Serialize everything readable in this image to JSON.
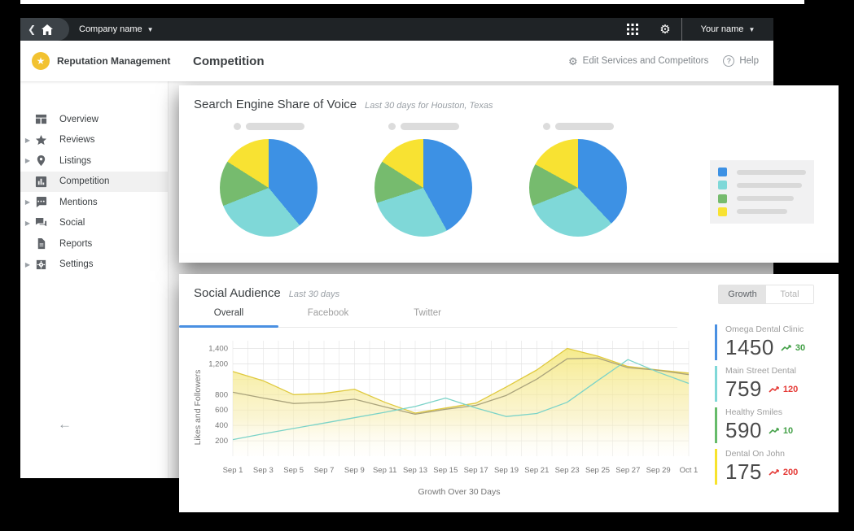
{
  "topbar": {
    "company_name": "Company name",
    "user_name": "Your name"
  },
  "brand": {
    "name": "Reputation Management"
  },
  "page": {
    "title": "Competition",
    "edit_link": "Edit Services and Competitors",
    "help_link": "Help",
    "help_glyph": "?"
  },
  "sidebar": {
    "items": [
      {
        "label": "Overview",
        "icon": "dashboard",
        "expandable": false,
        "active": false
      },
      {
        "label": "Reviews",
        "icon": "star",
        "expandable": true,
        "active": false
      },
      {
        "label": "Listings",
        "icon": "pin",
        "expandable": true,
        "active": false
      },
      {
        "label": "Competition",
        "icon": "chart",
        "expandable": false,
        "active": true
      },
      {
        "label": "Mentions",
        "icon": "comment",
        "expandable": true,
        "active": false
      },
      {
        "label": "Social",
        "icon": "chat",
        "expandable": true,
        "active": false
      },
      {
        "label": "Reports",
        "icon": "doc",
        "expandable": false,
        "active": false
      },
      {
        "label": "Settings",
        "icon": "gear",
        "expandable": true,
        "active": false
      }
    ]
  },
  "share_of_voice": {
    "title": "Search Engine Share of Voice",
    "subtitle": "Last 30 days for Houston, Texas",
    "colors": [
      "#3d91e4",
      "#7fd8d8",
      "#76bb6e",
      "#f8e232"
    ],
    "pies": [
      {
        "values": [
          39,
          30,
          15,
          16
        ]
      },
      {
        "values": [
          42,
          28,
          14,
          16
        ]
      },
      {
        "values": [
          38,
          31,
          14,
          17
        ]
      }
    ],
    "legend_pill_widths": [
      86,
      80,
      70,
      62
    ]
  },
  "social_audience": {
    "title": "Social Audience",
    "subtitle": "Last 30 days",
    "toggle": [
      {
        "label": "Growth",
        "active": true
      },
      {
        "label": "Total",
        "active": false
      }
    ],
    "tabs": [
      {
        "label": "Overall",
        "active": true
      },
      {
        "label": "Facebook",
        "active": false
      },
      {
        "label": "Twitter",
        "active": false
      }
    ],
    "stats": [
      {
        "name": "Omega Dental Clinic",
        "value": "1450",
        "change": "30",
        "trend": "up",
        "accent": "#4a90e2"
      },
      {
        "name": "Main Street Dental",
        "value": "759",
        "change": "120",
        "trend": "down",
        "accent": "#7fd8d8"
      },
      {
        "name": "Healthy Smiles",
        "value": "590",
        "change": "10",
        "trend": "up",
        "accent": "#66bb6a"
      },
      {
        "name": "Dental On John",
        "value": "175",
        "change": "200",
        "trend": "down",
        "accent": "#f7e32c"
      }
    ],
    "change_colors": {
      "up": "#43a047",
      "down": "#e53935"
    }
  },
  "chart_data": {
    "type": "area",
    "title": "Social Audience - Overall - Growth",
    "xlabel": "Growth Over 30 Days",
    "ylabel": "Likes and Followers",
    "x": [
      "Sep 1",
      "Sep 3",
      "Sep 5",
      "Sep 7",
      "Sep 9",
      "Sep 11",
      "Sep 13",
      "Sep 15",
      "Sep 17",
      "Sep 19",
      "Sep 21",
      "Sep 23",
      "Sep 25",
      "Sep 27",
      "Sep 29",
      "Oct 1"
    ],
    "ylim": [
      0,
      1500
    ],
    "yticks": [
      {
        "value": 200,
        "label": "200"
      },
      {
        "value": 400,
        "label": "400"
      },
      {
        "value": 600,
        "label": "600"
      },
      {
        "value": 800,
        "label": "800"
      },
      {
        "value": 1000,
        "label": ""
      },
      {
        "value": 1200,
        "label": "1,200"
      },
      {
        "value": 1400,
        "label": "1,400"
      }
    ],
    "grid": true,
    "legend_position": "none",
    "series": [
      {
        "name": "total-audience-area",
        "type": "area",
        "color": "#dfc93e",
        "values": [
          1100,
          980,
          800,
          815,
          870,
          700,
          560,
          625,
          690,
          900,
          1120,
          1400,
          1300,
          1165,
          1120,
          1080
        ]
      },
      {
        "name": "competitor-line-olive",
        "type": "line",
        "color": "#aaa37c",
        "values": [
          830,
          755,
          685,
          700,
          740,
          640,
          545,
          610,
          660,
          790,
          1000,
          1265,
          1275,
          1150,
          1115,
          1060
        ]
      },
      {
        "name": "competitor-line-teal",
        "type": "line",
        "color": "#7bd3c8",
        "values": [
          215,
          290,
          360,
          430,
          500,
          570,
          645,
          755,
          625,
          515,
          555,
          700,
          980,
          1255,
          1090,
          945
        ]
      }
    ]
  }
}
